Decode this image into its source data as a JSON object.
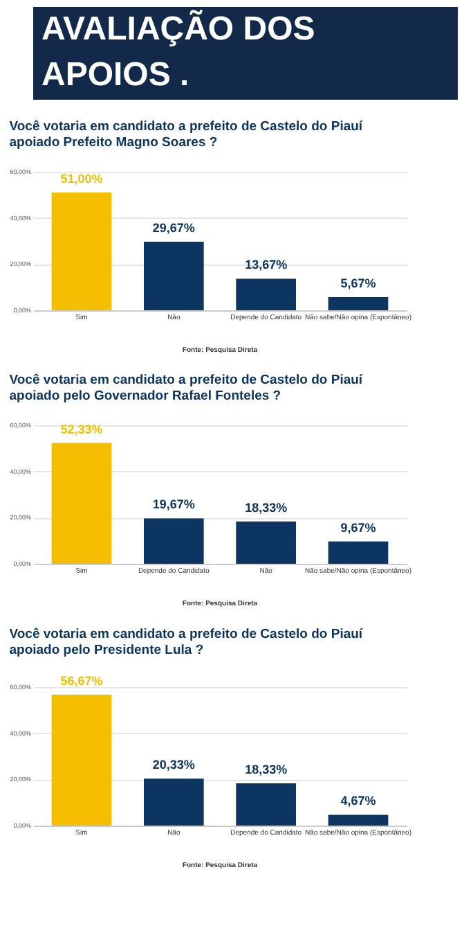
{
  "chart_data": [
    {
      "type": "other",
      "title": "AVALIAÇÃO DOS APOIOS ."
    },
    {
      "type": "bar",
      "title": "Você votaria em candidato a prefeito de Castelo do Piauí apoiado Prefeito Magno Soares ?",
      "categories": [
        "Sim",
        "Não",
        "Depende do Candidato",
        "Não sabe/Não opina (Espontâneo)"
      ],
      "values": [
        51.0,
        29.67,
        13.67,
        5.67
      ],
      "colors": [
        "#f5bf00",
        "#0d3561",
        "#0d3561",
        "#0d3561"
      ],
      "value_labels": [
        "51,00%",
        "29,67%",
        "13,67%",
        "5,67%"
      ],
      "ylim": [
        0,
        60
      ],
      "yticks": [
        {
          "value": 0,
          "label": "0,00%"
        },
        {
          "value": 20,
          "label": "20,00%"
        },
        {
          "value": 40,
          "label": "40,00%"
        },
        {
          "value": 60,
          "label": "60,00%"
        }
      ],
      "grid": "y",
      "annotations": [
        "Fonte: Pesquisa Direta"
      ]
    },
    {
      "type": "bar",
      "title": "Você votaria em candidato a prefeito de Castelo do Piauí apoiado pelo Governador Rafael Fonteles ?",
      "categories": [
        "Sim",
        "Depende do Candidato",
        "Não",
        "Não sabe/Não opina (Espontâneo)"
      ],
      "values": [
        52.33,
        19.67,
        18.33,
        9.67
      ],
      "colors": [
        "#f5bf00",
        "#0d3561",
        "#0d3561",
        "#0d3561"
      ],
      "value_labels": [
        "52,33%",
        "19,67%",
        "18,33%",
        "9,67%"
      ],
      "ylim": [
        0,
        60
      ],
      "yticks": [
        {
          "value": 0,
          "label": "0,00%"
        },
        {
          "value": 20,
          "label": "20,00%"
        },
        {
          "value": 40,
          "label": "40,00%"
        },
        {
          "value": 60,
          "label": "60,00%"
        }
      ],
      "grid": "y",
      "annotations": [
        "Fonte: Pesquisa Direta"
      ]
    },
    {
      "type": "bar",
      "title": "Você votaria em candidato a prefeito de Castelo do Piauí apoiado pelo Presidente Lula ?",
      "categories": [
        "Sim",
        "Não",
        "Depende do Candidato",
        "Não sabe/Não opina (Espontâneo)"
      ],
      "values": [
        56.67,
        20.33,
        18.33,
        4.67
      ],
      "colors": [
        "#f5bf00",
        "#0d3561",
        "#0d3561",
        "#0d3561"
      ],
      "value_labels": [
        "56,67%",
        "20,33%",
        "18,33%",
        "4,67%"
      ],
      "ylim": [
        0,
        60
      ],
      "yticks": [
        {
          "value": 0,
          "label": "0,00%"
        },
        {
          "value": 20,
          "label": "20,00%"
        },
        {
          "value": 40,
          "label": "40,00%"
        },
        {
          "value": 60,
          "label": "60,00%"
        }
      ],
      "grid": "y",
      "annotations": [
        "Fonte: Pesquisa Direta"
      ]
    }
  ]
}
